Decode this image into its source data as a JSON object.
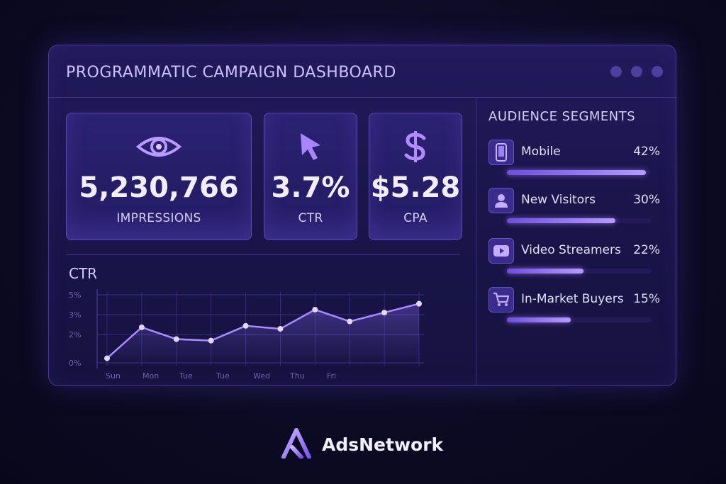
{
  "window": {
    "title": "PROGRAMMATIC CAMPAIGN DASHBOARD"
  },
  "kpis": [
    {
      "value": "5,230,766",
      "label": "IMPRESSIONS",
      "icon": "eye-icon"
    },
    {
      "value": "3.7%",
      "label": "CTR",
      "icon": "cursor-icon"
    },
    {
      "value": "$5.28",
      "label": "CPA",
      "icon": "dollar-icon"
    }
  ],
  "ctr_chart": {
    "title": "CTR"
  },
  "chart_data": {
    "type": "line",
    "title": "CTR",
    "y_ticks": [
      "5%",
      "3%",
      "2%",
      "0%"
    ],
    "x_ticks": [
      "Sun",
      "Mon",
      "Tue",
      "Tue",
      "Wed",
      "Thu",
      "Fri"
    ],
    "series": [
      {
        "values": [
          0.5,
          2.6,
          1.8,
          1.7,
          2.7,
          2.5,
          3.8,
          3.0,
          3.6,
          4.2
        ]
      }
    ],
    "ylim": [
      0,
      5
    ],
    "grid": true,
    "line_color": "#a98bff"
  },
  "audience": {
    "title": "AUDIENCE SEGMENTS",
    "segments": [
      {
        "name": "Mobile",
        "percent": "42%",
        "fill": 0.96,
        "icon": "smartphone-icon"
      },
      {
        "name": "New Visitors",
        "percent": "30%",
        "fill": 0.75,
        "icon": "user-icon"
      },
      {
        "name": "Video Streamers",
        "percent": "22%",
        "fill": 0.53,
        "icon": "play-video-icon"
      },
      {
        "name": "In-Market Buyers",
        "percent": "15%",
        "fill": 0.44,
        "icon": "shopping-cart-icon"
      }
    ]
  },
  "brand": {
    "name": "AdsNetwork"
  },
  "colors": {
    "background": "#0d0b24",
    "panel": "#1f1856",
    "accent": "#a98bff"
  }
}
